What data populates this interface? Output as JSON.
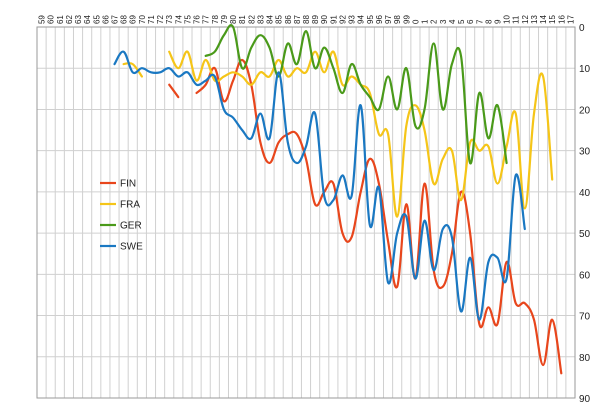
{
  "chart_data": {
    "type": "line",
    "title": "",
    "xlabel": "",
    "ylabel": "",
    "x_ticks": [
      "59",
      "60",
      "61",
      "62",
      "63",
      "64",
      "65",
      "66",
      "67",
      "68",
      "69",
      "70",
      "71",
      "72",
      "73",
      "74",
      "75",
      "76",
      "77",
      "78",
      "79",
      "80",
      "81",
      "82",
      "83",
      "84",
      "85",
      "86",
      "87",
      "88",
      "89",
      "90",
      "91",
      "92",
      "93",
      "94",
      "95",
      "96",
      "97",
      "98",
      "99",
      "0",
      "1",
      "2",
      "3",
      "4",
      "5",
      "6",
      "7",
      "8",
      "9",
      "10",
      "11",
      "12",
      "13",
      "14",
      "15",
      "16",
      "17"
    ],
    "y_ticks": [
      "0",
      "10",
      "20",
      "30",
      "40",
      "50",
      "60",
      "70",
      "80",
      "90"
    ],
    "ylim": [
      0,
      90
    ],
    "y_inverted": true,
    "x_axis_position": "top",
    "y_axis_position": "right",
    "legend_position": "left",
    "grid": true,
    "colors": {
      "FIN": "#e8461c",
      "FRA": "#f5c518",
      "GER": "#4a9a1a",
      "SWE": "#1a78c2",
      "grid": "#d0d0d0"
    },
    "series": [
      {
        "name": "FIN",
        "values": [
          null,
          null,
          null,
          null,
          null,
          null,
          null,
          null,
          null,
          null,
          null,
          null,
          null,
          null,
          14,
          17,
          null,
          16,
          14,
          10,
          18,
          13,
          8,
          14,
          28,
          33,
          28,
          26,
          26,
          32,
          43,
          40,
          38,
          50,
          51,
          40,
          32,
          38,
          52,
          63,
          43,
          61,
          38,
          59,
          63,
          55,
          40,
          50,
          72,
          68,
          72,
          57,
          67,
          67,
          71,
          82,
          71,
          84
        ]
      },
      {
        "name": "FRA",
        "values": [
          null,
          null,
          null,
          null,
          null,
          null,
          null,
          null,
          null,
          9,
          9,
          12,
          null,
          null,
          6,
          10,
          6,
          13,
          8,
          13,
          12,
          11,
          12,
          14,
          11,
          12,
          8,
          12,
          10,
          11,
          6,
          11,
          6,
          14,
          12,
          14,
          16,
          26,
          26,
          46,
          24,
          19,
          25,
          38,
          32,
          30,
          42,
          28,
          30,
          29,
          38,
          29,
          21,
          44,
          21,
          12,
          37
        ]
      },
      {
        "name": "GER",
        "values": [
          null,
          null,
          null,
          null,
          null,
          null,
          null,
          null,
          null,
          null,
          null,
          null,
          null,
          null,
          null,
          null,
          null,
          null,
          7,
          6,
          2,
          0,
          10,
          5,
          2,
          5,
          12,
          4,
          9,
          1,
          10,
          5,
          10,
          16,
          9,
          14,
          17,
          20,
          12,
          20,
          10,
          24,
          20,
          4,
          20,
          9,
          7,
          33,
          16,
          27,
          19,
          33
        ]
      },
      {
        "name": "SWE",
        "values": [
          null,
          null,
          null,
          null,
          null,
          null,
          null,
          null,
          9,
          6,
          11,
          10,
          11,
          11,
          10,
          12,
          11,
          14,
          13,
          12,
          20,
          22,
          25,
          27,
          21,
          27,
          11,
          28,
          33,
          29,
          21,
          41,
          42,
          36,
          41,
          19,
          48,
          39,
          62,
          50,
          46,
          61,
          47,
          59,
          49,
          51,
          69,
          56,
          71,
          57,
          56,
          61,
          36,
          49
        ]
      }
    ]
  }
}
